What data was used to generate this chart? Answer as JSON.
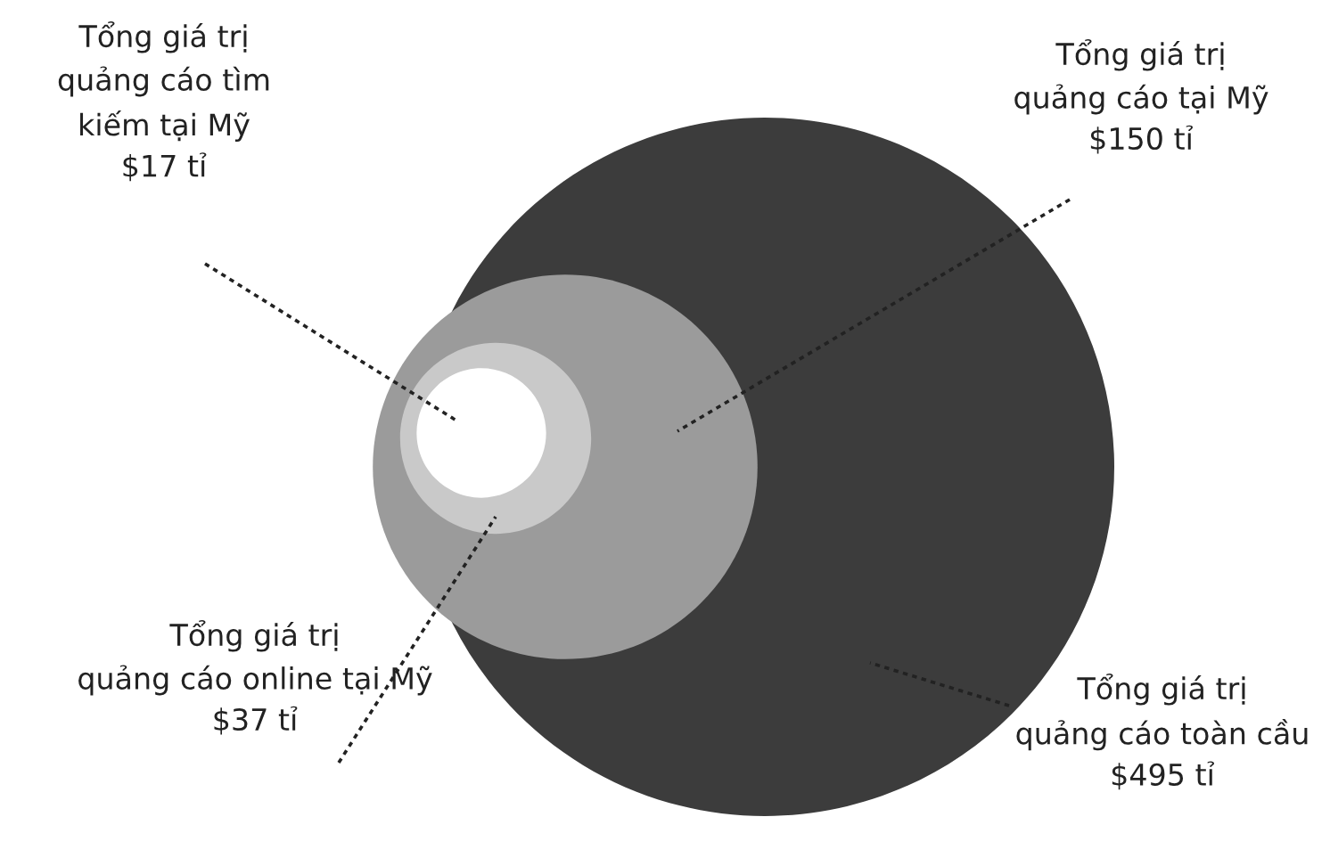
{
  "chart_data": {
    "type": "other",
    "categories": [
      "Tổng giá trị\nquảng cáo toàn cầu",
      "Tổng giá trị\nquảng cáo tại Mỹ",
      "Tổng giá trị\nquảng cáo online tại Mỹ",
      "Tổng giá trị\nquảng cáo tìm\nkiếm tại Mỹ"
    ],
    "values": [
      495,
      150,
      37,
      17
    ],
    "value_labels": [
      "$495 tỉ",
      "$150 tỉ",
      "$37 tỉ",
      "$17 tỉ"
    ],
    "colors": [
      "#3c3c3c",
      "#9b9b9b",
      "#c9c9c9",
      "#ffffff"
    ]
  }
}
